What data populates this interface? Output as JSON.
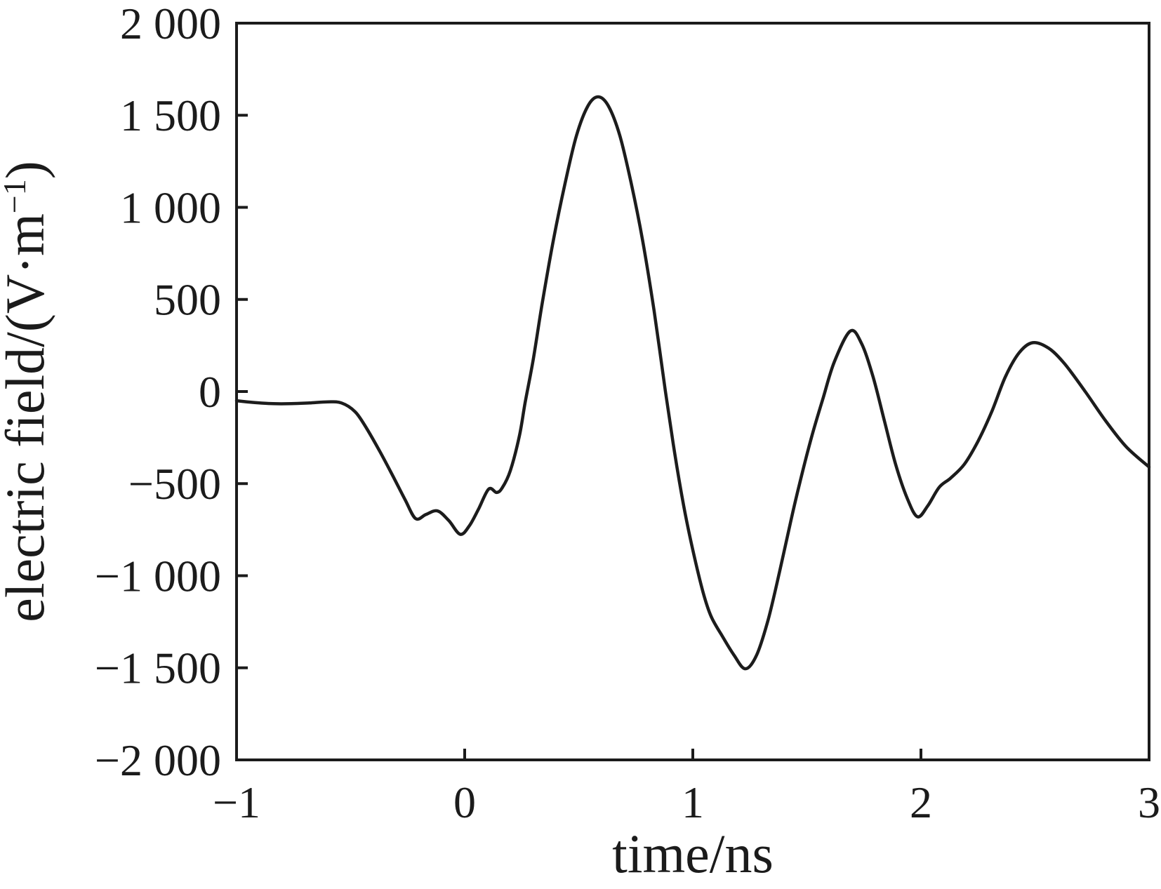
{
  "figure": {
    "background": "#ffffff",
    "axis_color": "#1b1b1b",
    "line_color": "#1c1c1c"
  },
  "chart_data": {
    "type": "line",
    "title": "",
    "xlabel": "time/ns",
    "ylabel": "electric field/(V·m⁻¹)",
    "ylabel_parts": {
      "main": "electric field/(V·m",
      "sup": "−1",
      "close": ")"
    },
    "xlim": [
      -1,
      3
    ],
    "ylim": [
      -2000,
      2000
    ],
    "grid": false,
    "legend": "none",
    "x_ticks": [
      {
        "value": -1,
        "label": "−1"
      },
      {
        "value": 0,
        "label": "0"
      },
      {
        "value": 1,
        "label": "1"
      },
      {
        "value": 2,
        "label": "2"
      },
      {
        "value": 3,
        "label": "3"
      }
    ],
    "y_ticks": [
      {
        "value": 2000,
        "label": "2 000"
      },
      {
        "value": 1500,
        "label": "1 500"
      },
      {
        "value": 1000,
        "label": "1 000"
      },
      {
        "value": 500,
        "label": "500"
      },
      {
        "value": 0,
        "label": "0"
      },
      {
        "value": -500,
        "label": "−500"
      },
      {
        "value": -1000,
        "label": "−1 000"
      },
      {
        "value": -1500,
        "label": "−1 500"
      },
      {
        "value": -2000,
        "label": "−2 000"
      }
    ],
    "series": [
      {
        "name": "electric field",
        "color": "#1c1c1c",
        "points": [
          [
            -1.0,
            -50
          ],
          [
            -0.92,
            -60
          ],
          [
            -0.84,
            -66
          ],
          [
            -0.76,
            -66
          ],
          [
            -0.68,
            -62
          ],
          [
            -0.6,
            -56
          ],
          [
            -0.54,
            -62
          ],
          [
            -0.48,
            -110
          ],
          [
            -0.43,
            -200
          ],
          [
            -0.37,
            -330
          ],
          [
            -0.31,
            -470
          ],
          [
            -0.26,
            -590
          ],
          [
            -0.215,
            -690
          ],
          [
            -0.17,
            -668
          ],
          [
            -0.12,
            -648
          ],
          [
            -0.07,
            -700
          ],
          [
            -0.02,
            -775
          ],
          [
            0.02,
            -730
          ],
          [
            0.06,
            -640
          ],
          [
            0.105,
            -530
          ],
          [
            0.14,
            -548
          ],
          [
            0.165,
            -522
          ],
          [
            0.2,
            -430
          ],
          [
            0.24,
            -240
          ],
          [
            0.265,
            -60
          ],
          [
            0.3,
            170
          ],
          [
            0.34,
            480
          ],
          [
            0.39,
            830
          ],
          [
            0.44,
            1130
          ],
          [
            0.49,
            1390
          ],
          [
            0.54,
            1550
          ],
          [
            0.585,
            1600
          ],
          [
            0.63,
            1550
          ],
          [
            0.68,
            1390
          ],
          [
            0.73,
            1130
          ],
          [
            0.78,
            820
          ],
          [
            0.83,
            440
          ],
          [
            0.88,
            0
          ],
          [
            0.92,
            -330
          ],
          [
            0.96,
            -620
          ],
          [
            1.0,
            -860
          ],
          [
            1.045,
            -1090
          ],
          [
            1.08,
            -1220
          ],
          [
            1.13,
            -1330
          ],
          [
            1.18,
            -1430
          ],
          [
            1.23,
            -1505
          ],
          [
            1.28,
            -1430
          ],
          [
            1.33,
            -1240
          ],
          [
            1.38,
            -980
          ],
          [
            1.43,
            -700
          ],
          [
            1.47,
            -490
          ],
          [
            1.52,
            -250
          ],
          [
            1.57,
            -40
          ],
          [
            1.62,
            160
          ],
          [
            1.69,
            328
          ],
          [
            1.74,
            260
          ],
          [
            1.79,
            80
          ],
          [
            1.84,
            -160
          ],
          [
            1.89,
            -400
          ],
          [
            1.94,
            -580
          ],
          [
            1.985,
            -680
          ],
          [
            2.03,
            -620
          ],
          [
            2.08,
            -520
          ],
          [
            2.13,
            -470
          ],
          [
            2.19,
            -395
          ],
          [
            2.25,
            -270
          ],
          [
            2.31,
            -110
          ],
          [
            2.37,
            80
          ],
          [
            2.43,
            210
          ],
          [
            2.49,
            265
          ],
          [
            2.56,
            235
          ],
          [
            2.63,
            150
          ],
          [
            2.72,
            0
          ],
          [
            2.81,
            -160
          ],
          [
            2.9,
            -300
          ],
          [
            3.0,
            -410
          ]
        ]
      }
    ]
  }
}
